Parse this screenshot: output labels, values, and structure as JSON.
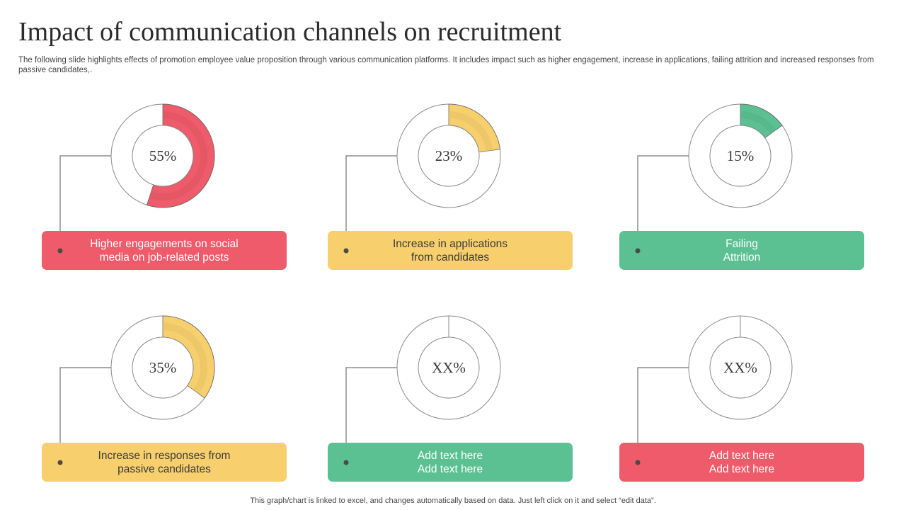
{
  "header": {
    "title": "Impact of communication channels on recruitment",
    "subtitle": "The following slide highlights effects of promotion employee value proposition through various communication platforms. It includes impact such as higher engagement, increase in applications, failing attrition and increased responses from passive candidates,."
  },
  "footer": {
    "note": "This graph/chart is linked to excel,  and changes automatically based on data. Just left click on it and select “edit data”."
  },
  "colors": {
    "red": "#ef5b6a",
    "yellow": "#f7cf6d",
    "green": "#5bc092",
    "ring_outline": "#8a8a8a",
    "connector": "#555555"
  },
  "chart_data": [
    {
      "type": "pie",
      "value_percent": 55,
      "label": "55%",
      "color": "red",
      "caption": [
        "Higher engagements on social",
        "media on job-related posts"
      ],
      "caption_color": "red"
    },
    {
      "type": "pie",
      "value_percent": 23,
      "label": "23%",
      "color": "yellow",
      "caption": [
        "Increase  in applications",
        "from candidates"
      ],
      "caption_color": "yellow"
    },
    {
      "type": "pie",
      "value_percent": 15,
      "label": "15%",
      "color": "green",
      "caption": [
        "Failing",
        "Attrition"
      ],
      "caption_color": "green"
    },
    {
      "type": "pie",
      "value_percent": 35,
      "label": "35%",
      "color": "yellow",
      "caption": [
        "Increase  in responses from",
        "passive candidates"
      ],
      "caption_color": "yellow"
    },
    {
      "type": "pie",
      "value_percent": 0,
      "label": "XX%",
      "color": "green",
      "caption": [
        "Add text here",
        "Add text here"
      ],
      "caption_color": "green"
    },
    {
      "type": "pie",
      "value_percent": 0,
      "label": "XX%",
      "color": "red",
      "caption": [
        "Add text here",
        "Add text here"
      ],
      "caption_color": "red"
    }
  ]
}
